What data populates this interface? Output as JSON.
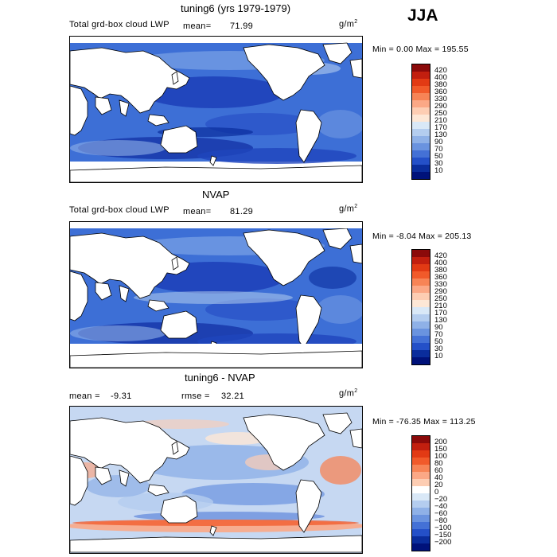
{
  "season": "JJA",
  "panels": [
    {
      "title": "tuning6 (yrs 1979-1979)",
      "field": "Total grd-box cloud LWP",
      "mean_label": "mean=",
      "mean_value": "71.99",
      "units": "g/m",
      "units_exp": "2",
      "range_text": "Min =    0.00 Max = 195.55",
      "scale": "sequential",
      "colorbar_labels": [
        "420",
        "400",
        "380",
        "360",
        "330",
        "290",
        "250",
        "210",
        "170",
        "130",
        "90",
        "70",
        "50",
        "30",
        "10"
      ],
      "colorbar_colors": [
        "#8b0a0a",
        "#c21f0f",
        "#e23a14",
        "#f15a2a",
        "#f78456",
        "#fba886",
        "#fdcdb3",
        "#fde7d6",
        "#d9e8f7",
        "#b4cdef",
        "#8fb1e7",
        "#6a93df",
        "#4471d6",
        "#2450c8",
        "#0a2d9c",
        "#00127a"
      ]
    },
    {
      "title": "NVAP",
      "field": "Total grd-box cloud LWP",
      "mean_label": "mean=",
      "mean_value": "81.29",
      "units": "g/m",
      "units_exp": "2",
      "range_text": "Min =  -8.04 Max = 205.13",
      "scale": "sequential",
      "colorbar_labels": [
        "420",
        "400",
        "380",
        "360",
        "330",
        "290",
        "250",
        "210",
        "170",
        "130",
        "90",
        "70",
        "50",
        "30",
        "10"
      ],
      "colorbar_colors": [
        "#8b0a0a",
        "#c21f0f",
        "#e23a14",
        "#f15a2a",
        "#f78456",
        "#fba886",
        "#fdcdb3",
        "#fde7d6",
        "#d9e8f7",
        "#b4cdef",
        "#8fb1e7",
        "#6a93df",
        "#4471d6",
        "#2450c8",
        "#0a2d9c",
        "#00127a"
      ]
    },
    {
      "title": "tuning6 - NVAP",
      "mean_label": "mean =",
      "mean_value": "-9.31",
      "rmse_label": "rmse =",
      "rmse_value": "32.21",
      "units": "g/m",
      "units_exp": "2",
      "range_text": "Min = -76.35 Max = 113.25",
      "scale": "diverging",
      "colorbar_labels": [
        "200",
        "150",
        "100",
        "80",
        "60",
        "40",
        "20",
        "0",
        "−20",
        "−40",
        "−60",
        "−80",
        "−100",
        "−150",
        "−200"
      ],
      "colorbar_colors": [
        "#8b0a0a",
        "#c21f0f",
        "#e23a14",
        "#f15a2a",
        "#f78456",
        "#fba886",
        "#fdcdb3",
        "#ffffff",
        "#d9e8f7",
        "#b4cdef",
        "#8fb1e7",
        "#6a93df",
        "#4471d6",
        "#2450c8",
        "#0a2d9c",
        "#00127a"
      ]
    }
  ]
}
